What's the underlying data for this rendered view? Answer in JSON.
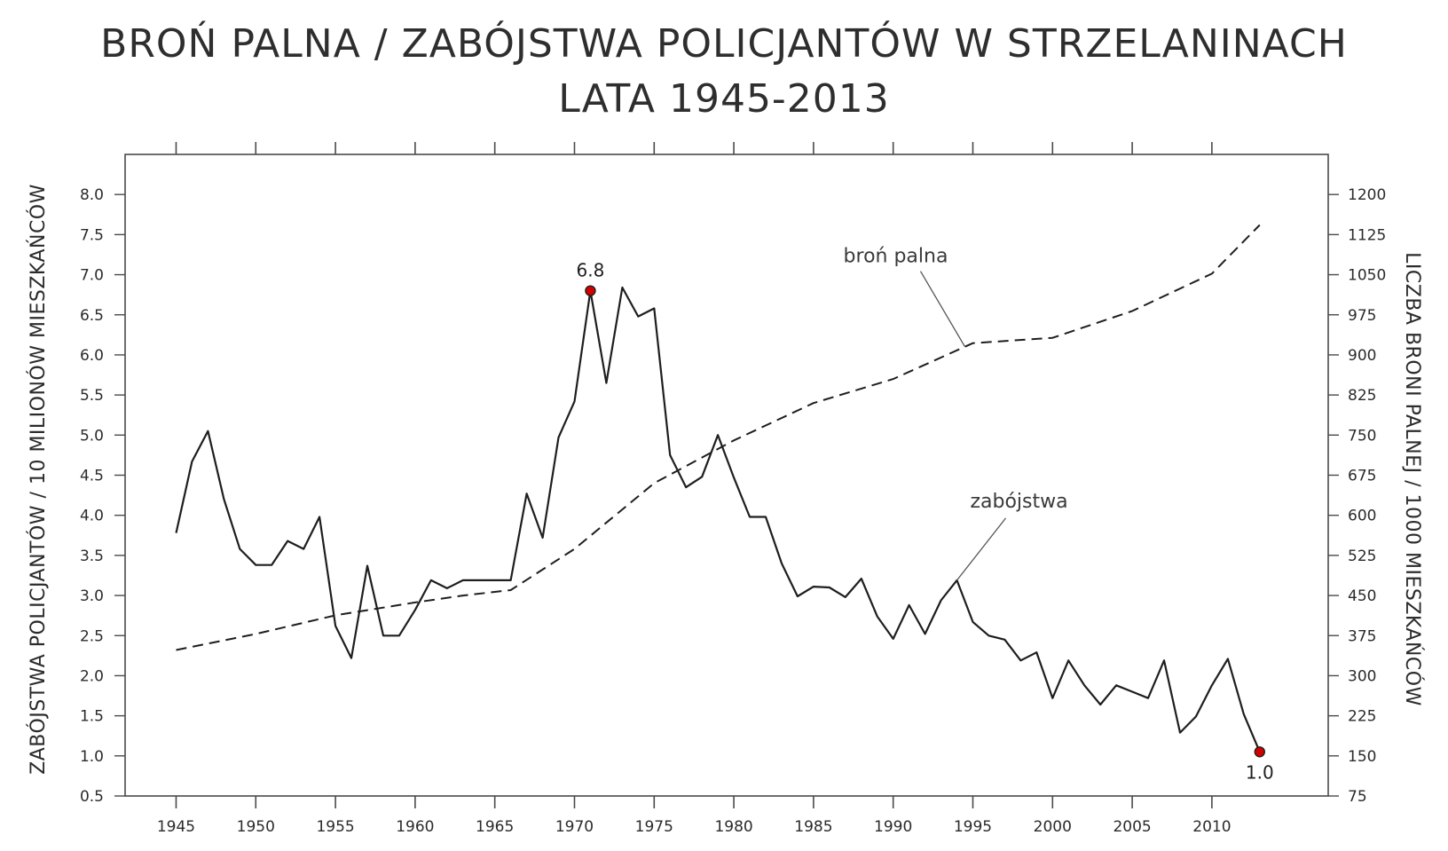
{
  "title_line1": "BROŃ PALNA / ZABÓJSTWA POLICJANTÓW W STRZELANINACH",
  "title_line2": "LATA 1945-2013",
  "colors": {
    "line": "#1e1e1e",
    "marker": "#d40000",
    "axis": "#4a4a4a"
  },
  "chart_data": {
    "type": "line",
    "title": "BROŃ PALNA / ZABÓJSTWA POLICJANTÓW W STRZELANINACH LATA 1945-2013",
    "xlabel": "",
    "ylabel_left": "ZABÓJSTWA POLICJANTÓW / 10 MILIONÓW MIESZKAŃCÓW",
    "ylabel_right": "LICZBA BRONI PALNEJ / 1000 MIESZKAŃCÓW",
    "xlim": [
      1941.8,
      2017.3
    ],
    "ylim_left": [
      0.5,
      8.5
    ],
    "ylim_right": [
      75,
      1275
    ],
    "x_ticks": [
      "1945",
      "1950",
      "1955",
      "1960",
      "1965",
      "1970",
      "1975",
      "1980",
      "1985",
      "1990",
      "1995",
      "2000",
      "2005",
      "2010"
    ],
    "y_ticks_left": [
      "0.5",
      "1.0",
      "1.5",
      "2.0",
      "2.5",
      "3.0",
      "3.5",
      "4.0",
      "4.5",
      "5.0",
      "5.5",
      "6.0",
      "6.5",
      "7.0",
      "7.5",
      "8.0"
    ],
    "y_ticks_right": [
      "75",
      "150",
      "225",
      "300",
      "375",
      "450",
      "525",
      "600",
      "675",
      "750",
      "825",
      "900",
      "975",
      "1050",
      "1125",
      "1200"
    ],
    "grid": false,
    "series": [
      {
        "name": "zabójstwa",
        "axis": "left",
        "style": "solid",
        "x": [
          1945,
          1946,
          1947,
          1948,
          1949,
          1950,
          1951,
          1952,
          1953,
          1954,
          1955,
          1956,
          1957,
          1958,
          1959,
          1960,
          1961,
          1962,
          1963,
          1964,
          1965,
          1966,
          1967,
          1968,
          1969,
          1970,
          1971,
          1972,
          1973,
          1974,
          1975,
          1976,
          1977,
          1978,
          1979,
          1980,
          1981,
          1982,
          1983,
          1984,
          1985,
          1986,
          1987,
          1988,
          1989,
          1990,
          1991,
          1992,
          1993,
          1994,
          1995,
          1996,
          1997,
          1998,
          1999,
          2000,
          2001,
          2002,
          2003,
          2004,
          2005,
          2006,
          2007,
          2008,
          2009,
          2010,
          2011,
          2012,
          2013
        ],
        "values": [
          3.78,
          4.67,
          5.05,
          4.2,
          3.58,
          3.38,
          3.38,
          3.68,
          3.58,
          3.98,
          2.62,
          2.22,
          3.37,
          2.5,
          2.5,
          2.82,
          3.19,
          3.09,
          3.19,
          3.19,
          3.19,
          3.19,
          4.27,
          3.72,
          4.97,
          5.42,
          6.8,
          5.65,
          6.84,
          6.48,
          6.58,
          4.75,
          4.35,
          4.48,
          5.0,
          4.47,
          3.98,
          3.98,
          3.4,
          2.99,
          3.11,
          3.1,
          2.98,
          3.21,
          2.74,
          2.46,
          2.88,
          2.52,
          2.94,
          3.19,
          2.67,
          2.5,
          2.45,
          2.19,
          2.29,
          1.72,
          2.19,
          1.88,
          1.64,
          1.88,
          1.8,
          1.72,
          2.19,
          1.29,
          1.49,
          1.88,
          2.21,
          1.52,
          1.05
        ]
      },
      {
        "name": "broń palna",
        "axis": "right",
        "style": "dashed",
        "x": [
          1945,
          1950,
          1955,
          1960,
          1963,
          1966,
          1970,
          1975,
          1980,
          1985,
          1990,
          1995,
          2000,
          2005,
          2010,
          2013
        ],
        "values": [
          348,
          378,
          413,
          437,
          450,
          460,
          537,
          660,
          740,
          810,
          855,
          922,
          932,
          982,
          1052,
          1143
        ]
      }
    ],
    "annotations": [
      {
        "text": "broń palna",
        "series": "broń palna",
        "x": 1994.5
      },
      {
        "text": "zabójstwa",
        "series": "zabójstwa",
        "x": 1994
      }
    ],
    "point_labels": [
      {
        "text": "6.8",
        "x": 1971,
        "y": 6.8,
        "position": "above"
      },
      {
        "text": "1.0",
        "x": 2013,
        "y": 1.05,
        "position": "below"
      }
    ]
  }
}
